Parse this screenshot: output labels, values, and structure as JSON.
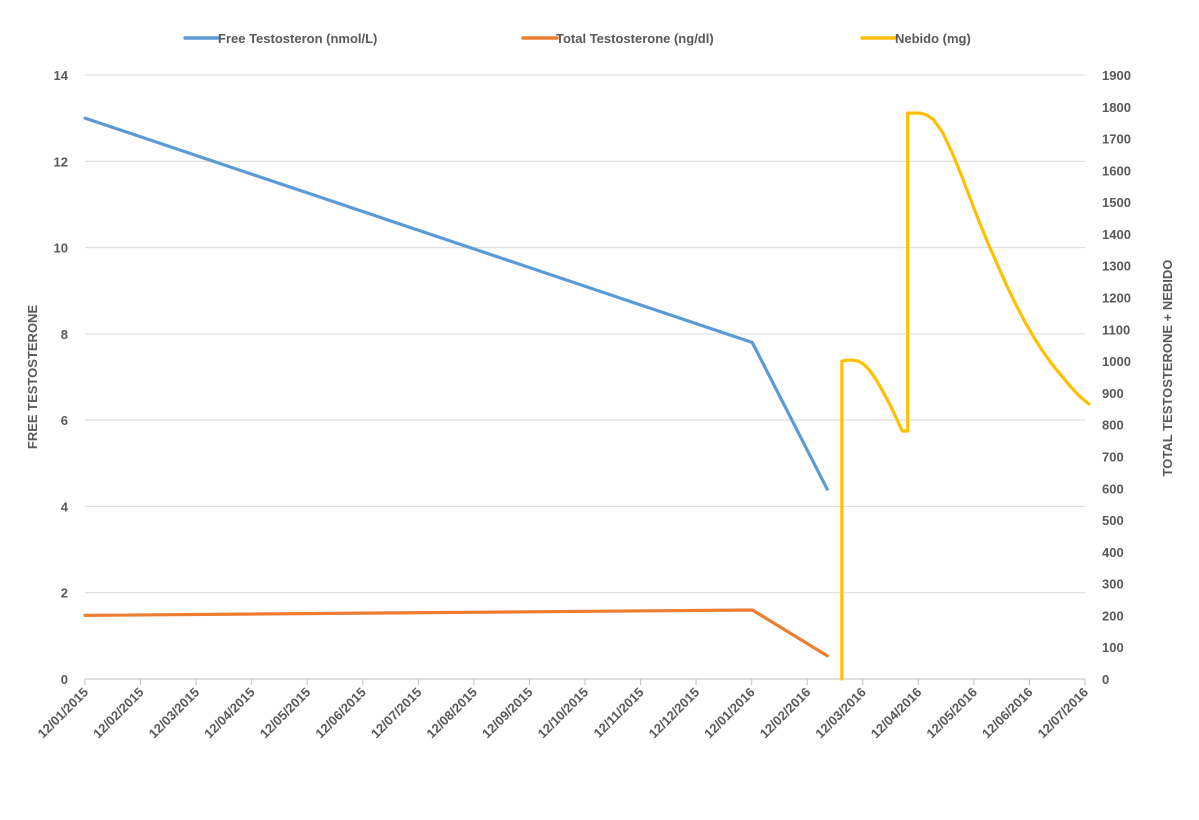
{
  "chart_data": {
    "type": "line",
    "x_tick_labels": [
      "12/01/2015",
      "12/02/2015",
      "12/03/2015",
      "12/04/2015",
      "12/05/2015",
      "12/06/2015",
      "12/07/2015",
      "12/08/2015",
      "12/09/2015",
      "12/10/2015",
      "12/11/2015",
      "12/12/2015",
      "12/01/2016",
      "12/02/2016",
      "12/03/2016",
      "12/04/2016",
      "12/05/2016",
      "12/06/2016",
      "12/07/2016"
    ],
    "x_range": [
      "2015-01-12",
      "2016-07-12"
    ],
    "ylabel_left": "FREE TESTOSTERONE",
    "ylabel_right": "TOTAL TESTOSTERONE + NEBIDO",
    "ylim_left": [
      0,
      14
    ],
    "ylim_right": [
      0,
      1900
    ],
    "yticks_left": [
      0,
      2,
      4,
      6,
      8,
      10,
      12,
      14
    ],
    "yticks_right": [
      0,
      100,
      200,
      300,
      400,
      500,
      600,
      700,
      800,
      900,
      1000,
      1100,
      1200,
      1300,
      1400,
      1500,
      1600,
      1700,
      1800,
      1900
    ],
    "grid": true,
    "legend_position": "top",
    "series": [
      {
        "name": "Free Testosteron (nmol/L)",
        "axis": "left",
        "color": "#5b9bd5",
        "x": [
          "2015-01-12",
          "2016-01-12",
          "2016-02-22"
        ],
        "y": [
          13.0,
          7.8,
          4.4
        ]
      },
      {
        "name": "Total Testosterone (ng/dl)",
        "axis": "right",
        "color": "#ed7d31",
        "x": [
          "2015-01-12",
          "2016-01-12",
          "2016-02-22"
        ],
        "y": [
          200,
          217,
          73
        ]
      },
      {
        "name": "Nebido (mg)",
        "axis": "right",
        "color": "#ffc000",
        "x": [
          "2016-03-01",
          "2016-03-01",
          "2016-03-04",
          "2016-03-07",
          "2016-03-10",
          "2016-03-13",
          "2016-03-16",
          "2016-03-19",
          "2016-03-22",
          "2016-03-25",
          "2016-03-28",
          "2016-03-31",
          "2016-04-03",
          "2016-04-06",
          "2016-04-06",
          "2016-04-09",
          "2016-04-13",
          "2016-04-16",
          "2016-04-20",
          "2016-04-25",
          "2016-04-30",
          "2016-05-05",
          "2016-05-10",
          "2016-05-15",
          "2016-05-20",
          "2016-05-25",
          "2016-05-30",
          "2016-06-04",
          "2016-06-09",
          "2016-06-14",
          "2016-06-19",
          "2016-06-24",
          "2016-06-29",
          "2016-07-04",
          "2016-07-09",
          "2016-07-14"
        ],
        "y": [
          0,
          1000,
          1003,
          1003,
          1000,
          990,
          972,
          948,
          920,
          888,
          855,
          818,
          780,
          780,
          1780,
          1780,
          1780,
          1775,
          1760,
          1720,
          1660,
          1590,
          1515,
          1440,
          1370,
          1305,
          1240,
          1180,
          1125,
          1075,
          1030,
          990,
          955,
          920,
          890,
          865
        ]
      }
    ]
  }
}
